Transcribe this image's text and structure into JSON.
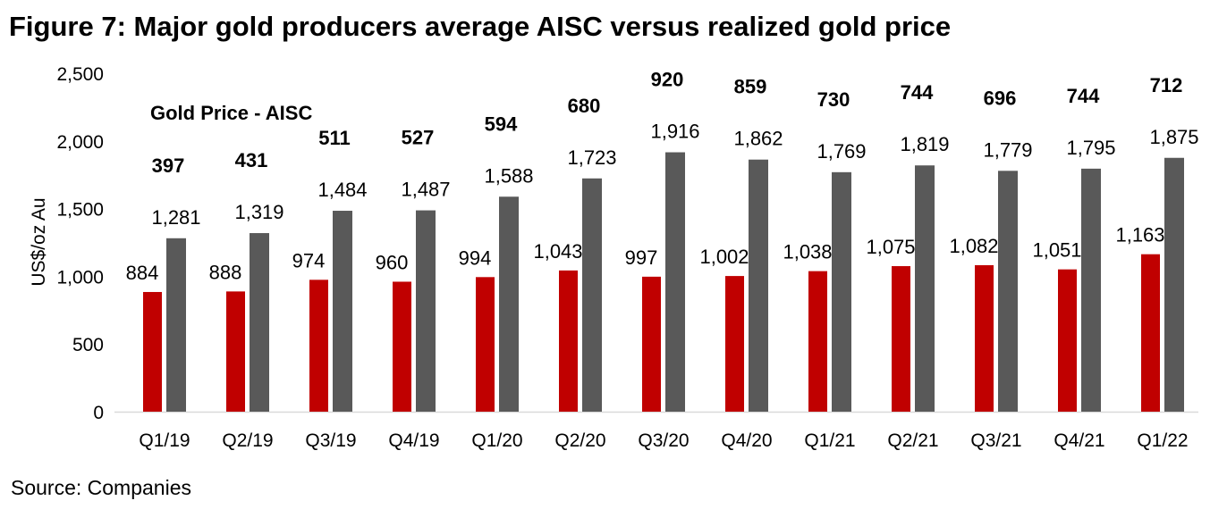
{
  "chart_data": {
    "type": "bar",
    "title": "Figure 7: Major gold producers average AISC versus realized gold price",
    "ylabel": "US$/oz Au",
    "xlabel": "",
    "ylim": [
      0,
      2500
    ],
    "yticks": [
      0,
      500,
      1000,
      1500,
      2000,
      2500
    ],
    "ytick_labels": [
      "0",
      "500",
      "1,000",
      "1,500",
      "2,000",
      "2,500"
    ],
    "categories": [
      "Q1/19",
      "Q2/19",
      "Q3/19",
      "Q4/19",
      "Q1/20",
      "Q2/20",
      "Q3/20",
      "Q4/20",
      "Q1/21",
      "Q2/21",
      "Q3/21",
      "Q4/21",
      "Q1/22"
    ],
    "series": [
      {
        "name": "AISC",
        "color": "#C00000",
        "values": [
          884,
          888,
          974,
          960,
          994,
          1043,
          997,
          1002,
          1038,
          1075,
          1082,
          1051,
          1163
        ]
      },
      {
        "name": "Gold Price",
        "color": "#595959",
        "values": [
          1281,
          1319,
          1484,
          1487,
          1588,
          1723,
          1916,
          1862,
          1769,
          1819,
          1779,
          1795,
          1875
        ]
      }
    ],
    "annotation_label": "Gold Price - AISC",
    "differences": [
      397,
      431,
      511,
      527,
      594,
      680,
      920,
      859,
      730,
      744,
      696,
      744,
      712
    ],
    "grid": false,
    "source": "Source: Companies"
  }
}
